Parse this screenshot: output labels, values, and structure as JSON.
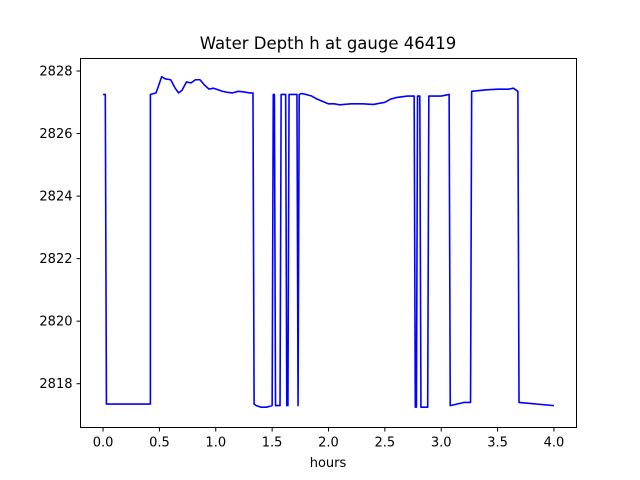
{
  "chart_data": {
    "type": "line",
    "title": "Water Depth h at gauge 46419",
    "xlabel": "hours",
    "ylabel": "",
    "xlim": [
      -0.2,
      4.2
    ],
    "ylim": [
      2816.6,
      2828.4
    ],
    "xticks": [
      0.0,
      0.5,
      1.0,
      1.5,
      2.0,
      2.5,
      3.0,
      3.5,
      4.0
    ],
    "xtick_labels": [
      "0.0",
      "0.5",
      "1.0",
      "1.5",
      "2.0",
      "2.5",
      "3.0",
      "3.5",
      "4.0"
    ],
    "yticks": [
      2818,
      2820,
      2822,
      2824,
      2826,
      2828
    ],
    "ytick_labels": [
      "2818",
      "2820",
      "2822",
      "2824",
      "2826",
      "2828"
    ],
    "grid": false,
    "series": [
      {
        "color": "#0000ff",
        "x": [
          0.0,
          0.02,
          0.03,
          0.42,
          0.42,
          0.47,
          0.49,
          0.52,
          0.55,
          0.6,
          0.64,
          0.67,
          0.7,
          0.74,
          0.78,
          0.82,
          0.86,
          0.9,
          0.94,
          0.98,
          1.02,
          1.06,
          1.1,
          1.15,
          1.2,
          1.25,
          1.3,
          1.33,
          1.34,
          1.36,
          1.4,
          1.45,
          1.5,
          1.51,
          1.52,
          1.53,
          1.55,
          1.57,
          1.58,
          1.62,
          1.63,
          1.64,
          1.65,
          1.7,
          1.72,
          1.73,
          1.74,
          1.76,
          1.8,
          1.85,
          1.9,
          2.0,
          2.05,
          2.1,
          2.2,
          2.3,
          2.4,
          2.5,
          2.55,
          2.6,
          2.7,
          2.76,
          2.77,
          2.78,
          2.79,
          2.8,
          2.81,
          2.82,
          2.83,
          2.88,
          2.89,
          3.0,
          3.07,
          3.08,
          3.2,
          3.26,
          3.27,
          3.4,
          3.5,
          3.6,
          3.64,
          3.68,
          3.69,
          4.0
        ],
        "y": [
          2827.25,
          2827.25,
          2817.35,
          2817.35,
          2827.25,
          2827.3,
          2827.5,
          2827.82,
          2827.75,
          2827.72,
          2827.45,
          2827.3,
          2827.38,
          2827.65,
          2827.62,
          2827.72,
          2827.72,
          2827.55,
          2827.42,
          2827.45,
          2827.4,
          2827.35,
          2827.32,
          2827.3,
          2827.35,
          2827.33,
          2827.3,
          2827.3,
          2817.35,
          2817.3,
          2817.25,
          2817.25,
          2817.3,
          2827.25,
          2827.25,
          2817.3,
          2817.3,
          2817.3,
          2827.25,
          2827.25,
          2817.3,
          2817.3,
          2827.25,
          2827.25,
          2827.25,
          2817.3,
          2827.25,
          2827.28,
          2827.25,
          2827.2,
          2827.1,
          2826.95,
          2826.95,
          2826.92,
          2826.95,
          2826.95,
          2826.93,
          2827.0,
          2827.1,
          2827.15,
          2827.2,
          2827.2,
          2817.25,
          2817.25,
          2827.2,
          2827.2,
          2827.2,
          2817.25,
          2817.25,
          2817.25,
          2827.2,
          2827.2,
          2827.25,
          2817.3,
          2817.4,
          2817.4,
          2827.35,
          2827.4,
          2827.42,
          2827.42,
          2827.45,
          2827.35,
          2817.4,
          2817.3
        ]
      }
    ]
  }
}
